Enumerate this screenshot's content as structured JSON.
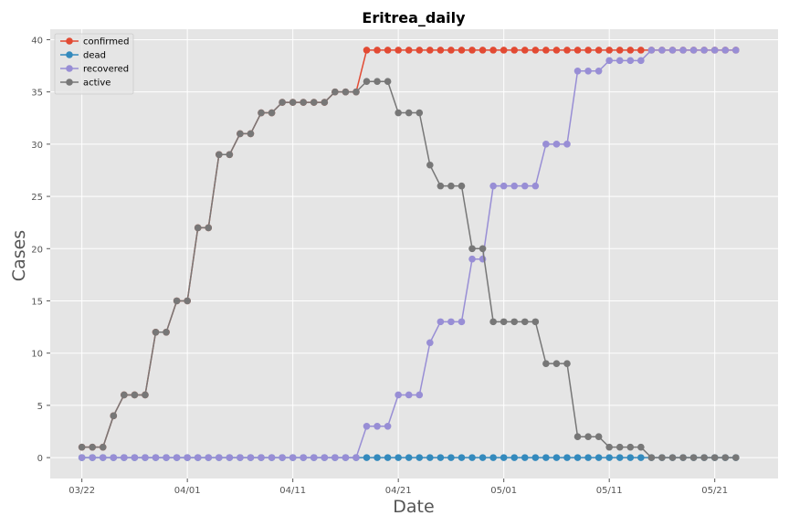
{
  "chart_data": {
    "type": "line",
    "title": "Eritrea_daily",
    "xlabel": "Date",
    "ylabel": "Cases",
    "x_start": "2020-03-22",
    "x_end": "2020-05-23",
    "x_range": [
      "2020-03-19",
      "2020-05-27"
    ],
    "ylim": [
      -2,
      41
    ],
    "xticks": [
      {
        "date": "2020-03-22",
        "label": "03/22"
      },
      {
        "date": "2020-04-01",
        "label": "04/01"
      },
      {
        "date": "2020-04-11",
        "label": "04/11"
      },
      {
        "date": "2020-04-21",
        "label": "04/21"
      },
      {
        "date": "2020-05-01",
        "label": "05/01"
      },
      {
        "date": "2020-05-11",
        "label": "05/11"
      },
      {
        "date": "2020-05-21",
        "label": "05/21"
      }
    ],
    "yticks": [
      0,
      5,
      10,
      15,
      20,
      25,
      30,
      35,
      40
    ],
    "grid": true,
    "legend_position": "top-left",
    "series": [
      {
        "name": "confirmed",
        "color": "#E24A33",
        "values": [
          1,
          1,
          1,
          4,
          6,
          6,
          6,
          12,
          12,
          15,
          15,
          22,
          22,
          29,
          29,
          31,
          31,
          33,
          33,
          34,
          34,
          34,
          34,
          34,
          35,
          35,
          35,
          39,
          39,
          39,
          39,
          39,
          39,
          39,
          39,
          39,
          39,
          39,
          39,
          39,
          39,
          39,
          39,
          39,
          39,
          39,
          39,
          39,
          39,
          39,
          39,
          39,
          39,
          39,
          39,
          39,
          39,
          39,
          39,
          39,
          39,
          39,
          39
        ]
      },
      {
        "name": "dead",
        "color": "#348ABD",
        "values": [
          0,
          0,
          0,
          0,
          0,
          0,
          0,
          0,
          0,
          0,
          0,
          0,
          0,
          0,
          0,
          0,
          0,
          0,
          0,
          0,
          0,
          0,
          0,
          0,
          0,
          0,
          0,
          0,
          0,
          0,
          0,
          0,
          0,
          0,
          0,
          0,
          0,
          0,
          0,
          0,
          0,
          0,
          0,
          0,
          0,
          0,
          0,
          0,
          0,
          0,
          0,
          0,
          0,
          0,
          0,
          0,
          0,
          0,
          0,
          0,
          0,
          0,
          0
        ]
      },
      {
        "name": "recovered",
        "color": "#988ED5",
        "values": [
          0,
          0,
          0,
          0,
          0,
          0,
          0,
          0,
          0,
          0,
          0,
          0,
          0,
          0,
          0,
          0,
          0,
          0,
          0,
          0,
          0,
          0,
          0,
          0,
          0,
          0,
          0,
          3,
          3,
          3,
          6,
          6,
          6,
          11,
          13,
          13,
          13,
          19,
          19,
          26,
          26,
          26,
          26,
          26,
          30,
          30,
          30,
          37,
          37,
          37,
          38,
          38,
          38,
          38,
          39,
          39,
          39,
          39,
          39,
          39,
          39,
          39,
          39
        ]
      },
      {
        "name": "active",
        "color": "#777777",
        "values": [
          1,
          1,
          1,
          4,
          6,
          6,
          6,
          12,
          12,
          15,
          15,
          22,
          22,
          29,
          29,
          31,
          31,
          33,
          33,
          34,
          34,
          34,
          34,
          34,
          35,
          35,
          35,
          36,
          36,
          36,
          33,
          33,
          33,
          28,
          26,
          26,
          26,
          20,
          20,
          13,
          13,
          13,
          13,
          13,
          9,
          9,
          9,
          2,
          2,
          2,
          1,
          1,
          1,
          1,
          0,
          0,
          0,
          0,
          0,
          0,
          0,
          0,
          0
        ]
      }
    ]
  }
}
